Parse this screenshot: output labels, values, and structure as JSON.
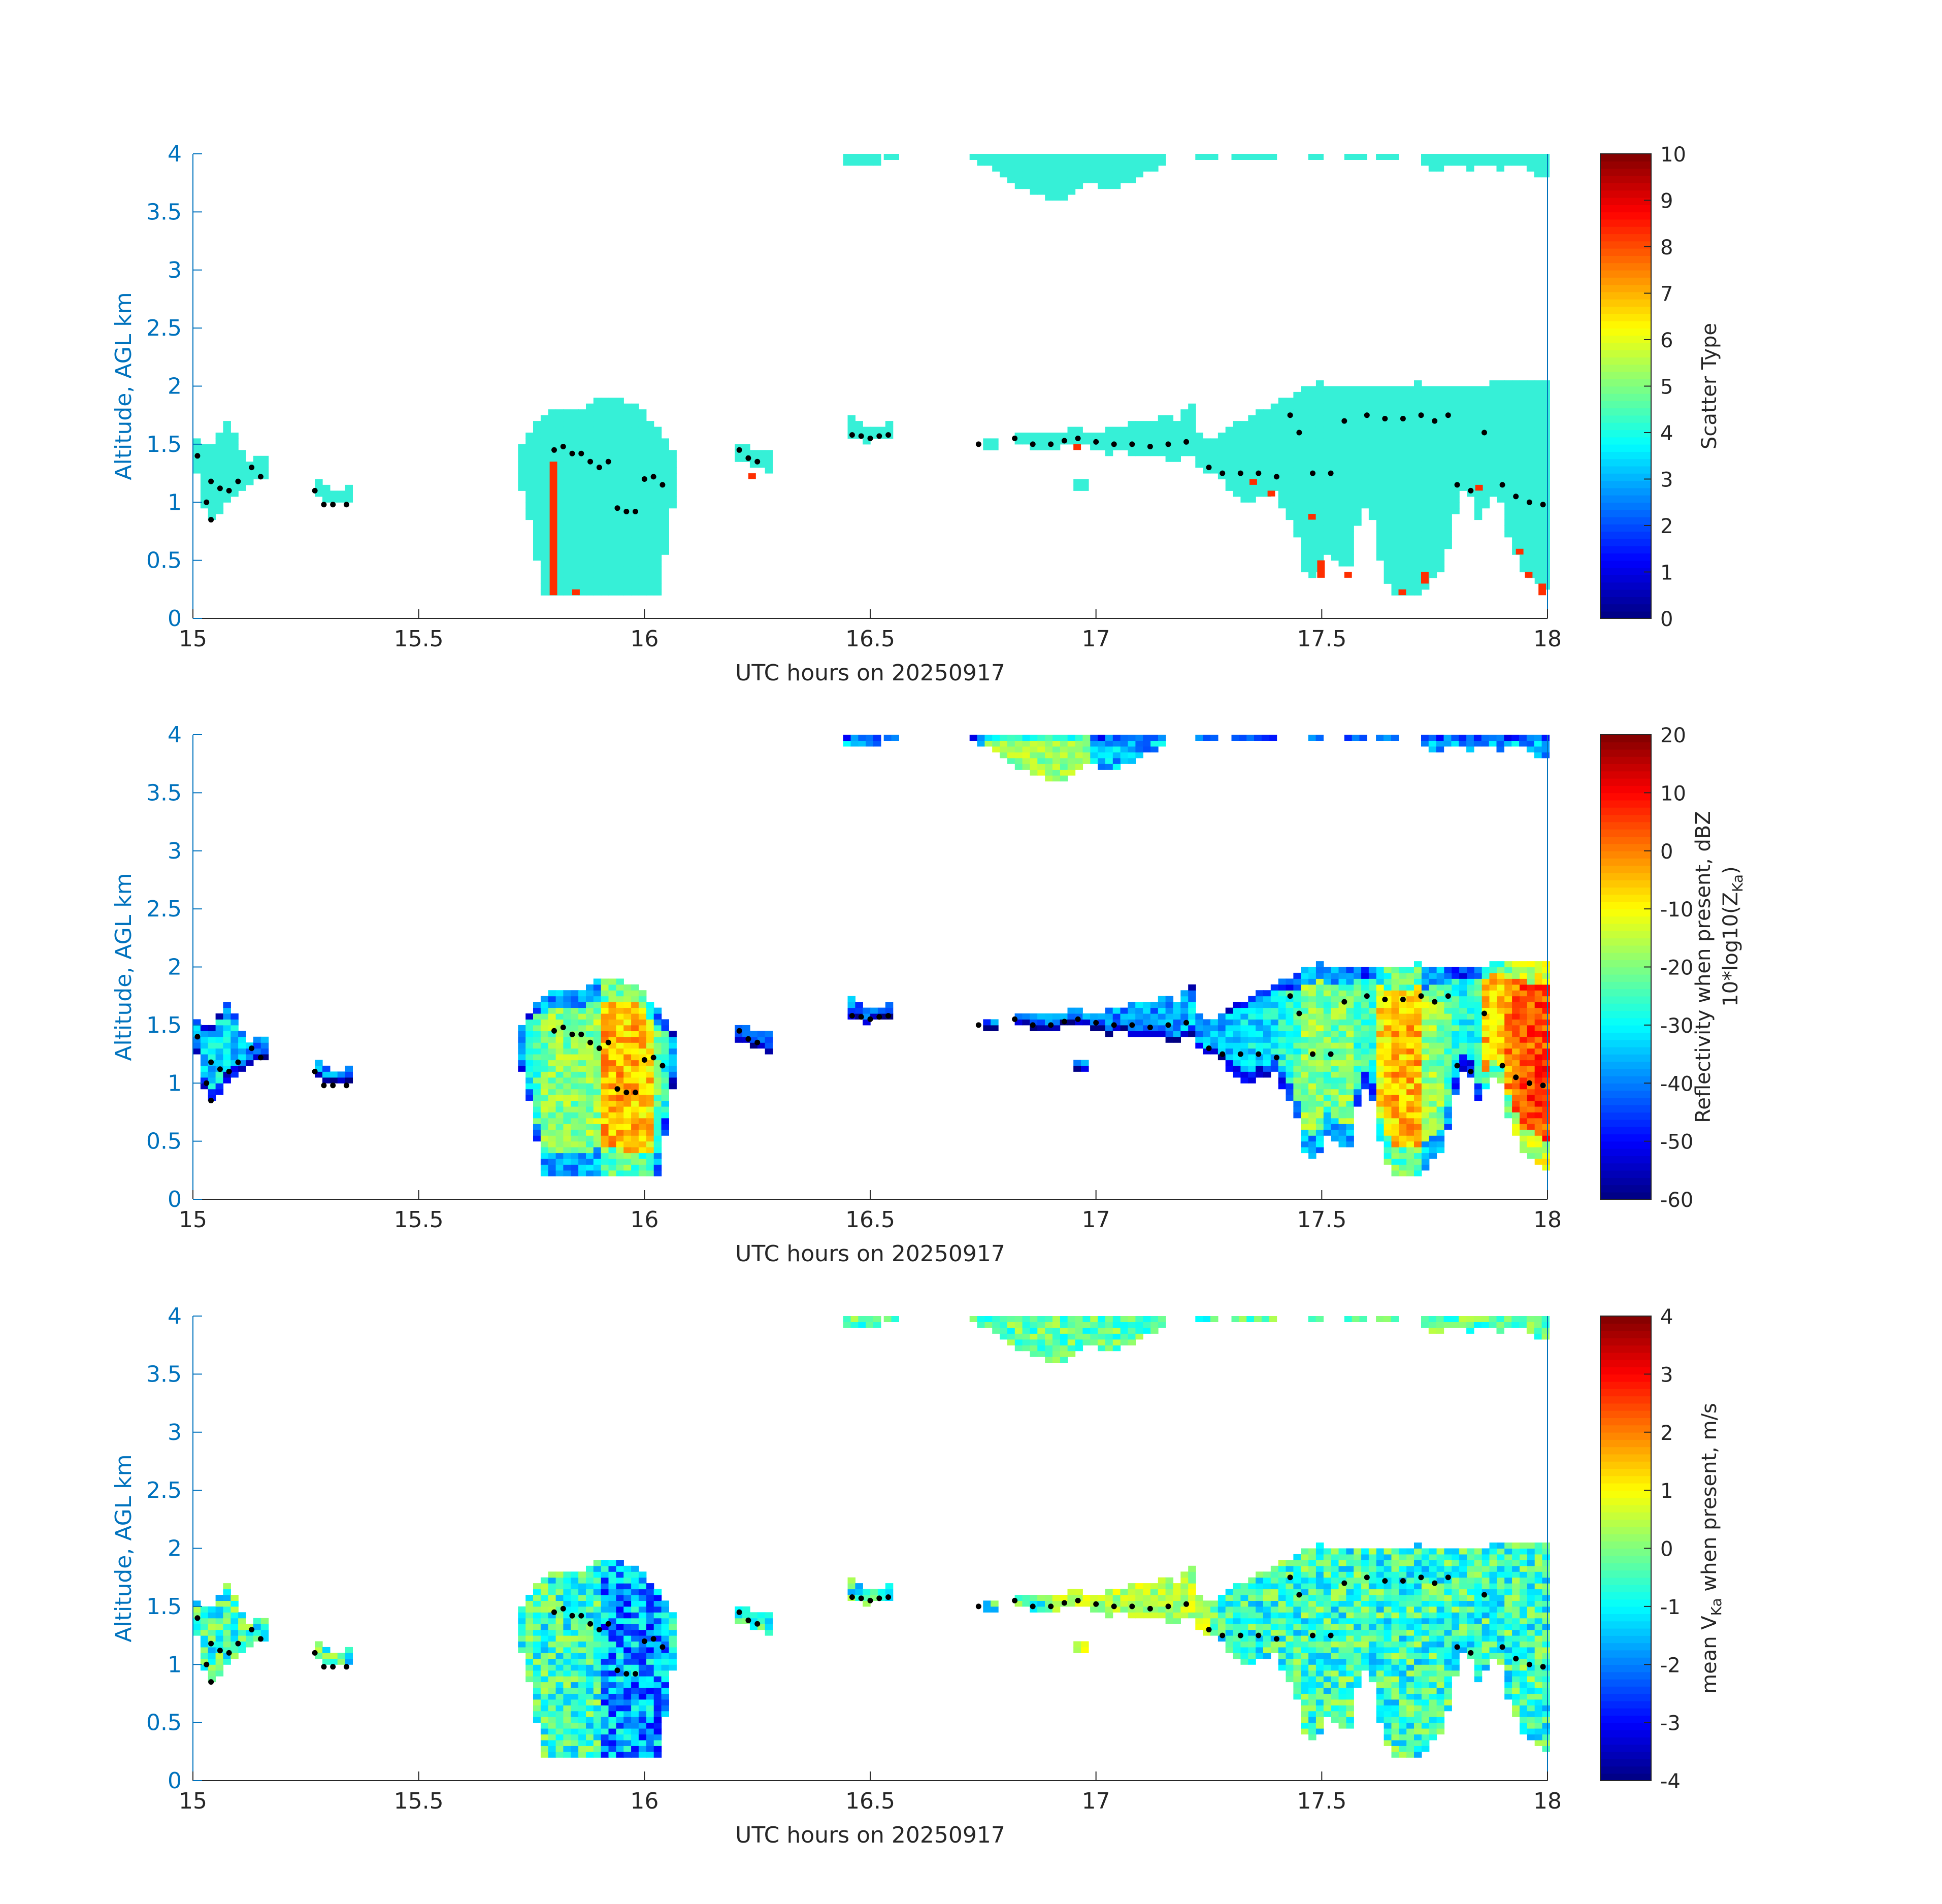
{
  "chart_data": [
    {
      "type": "heatmap",
      "panel": "scatter-type",
      "xlabel": "UTC hours on 20250917",
      "ylabel": "Altitude, AGL km",
      "xlim": [
        15,
        18
      ],
      "ylim": [
        0,
        4
      ],
      "xticks": [
        "15",
        "15.5",
        "16",
        "16.5",
        "17",
        "17.5",
        "18"
      ],
      "yticks": [
        "0",
        "0.5",
        "1",
        "1.5",
        "2",
        "2.5",
        "3",
        "3.5",
        "4"
      ],
      "colorbar": {
        "label": "Scatter Type",
        "label2": "",
        "clim": [
          0,
          10
        ],
        "ticks": [
          "0",
          "1",
          "2",
          "3",
          "4",
          "5",
          "6",
          "7",
          "8",
          "9",
          "10"
        ],
        "colormap": "jet"
      },
      "dominant_value": 3.8,
      "secondary_value": 8.3
    },
    {
      "type": "heatmap",
      "panel": "reflectivity",
      "xlabel": "UTC hours on 20250917",
      "ylabel": "Altitude, AGL km",
      "xlim": [
        15,
        18
      ],
      "ylim": [
        0,
        4
      ],
      "xticks": [
        "15",
        "15.5",
        "16",
        "16.5",
        "17",
        "17.5",
        "18"
      ],
      "yticks": [
        "0",
        "0.5",
        "1",
        "1.5",
        "2",
        "2.5",
        "3",
        "3.5",
        "4"
      ],
      "colorbar": {
        "label": "Reflectivity when present, dBZ",
        "label2": "10*log10(Z",
        "label2_sub": "Ka",
        "label2_end": ")",
        "clim": [
          -60,
          20
        ],
        "ticks": [
          "-60",
          "-50",
          "-40",
          "-30",
          "-20",
          "-10",
          "0",
          "10",
          "20"
        ],
        "colormap": "jet"
      }
    },
    {
      "type": "heatmap",
      "panel": "mean-velocity",
      "xlabel": "UTC hours on 20250917",
      "ylabel": "Altitude, AGL km",
      "xlim": [
        15,
        18
      ],
      "ylim": [
        0,
        4
      ],
      "xticks": [
        "15",
        "15.5",
        "16",
        "16.5",
        "17",
        "17.5",
        "18"
      ],
      "yticks": [
        "0",
        "0.5",
        "1",
        "1.5",
        "2",
        "2.5",
        "3",
        "3.5",
        "4"
      ],
      "colorbar": {
        "label": "mean V",
        "label_sub": "Ka",
        "label_end": " when present, m/s",
        "clim": [
          -4,
          4
        ],
        "ticks": [
          "-4",
          "-3",
          "-2",
          "-1",
          "0",
          "1",
          "2",
          "3",
          "4"
        ],
        "colormap": "jet"
      }
    }
  ],
  "cloud_regions": [
    {
      "x0": 15.0,
      "x1": 15.16,
      "ybot": [
        1.25,
        0.85,
        0.9,
        1.0,
        1.1,
        1.15,
        1.2,
        1.2
      ],
      "ytop": [
        1.55,
        1.45,
        1.6,
        1.72,
        1.5,
        1.35,
        1.38,
        1.38
      ]
    },
    {
      "x0": 15.27,
      "x1": 15.35,
      "ybot": [
        1.05,
        0.98,
        0.98,
        0.98
      ],
      "ytop": [
        1.2,
        1.12,
        1.12,
        1.15
      ]
    },
    {
      "x0": 15.72,
      "x1": 16.07,
      "ybot": [
        1.1,
        0.8,
        0.2,
        0.2,
        0.2,
        0.2,
        0.2,
        0.2,
        0.2,
        0.2,
        0.2,
        0.2,
        0.2,
        0.2,
        0.2,
        0.9,
        1.0
      ],
      "ytop": [
        1.5,
        1.6,
        1.75,
        1.8,
        1.78,
        1.8,
        1.82,
        1.85,
        1.9,
        1.9,
        1.88,
        1.85,
        1.8,
        1.7,
        1.6,
        1.5,
        1.4
      ]
    },
    {
      "x0": 16.2,
      "x1": 16.27,
      "ybot": [
        1.35,
        1.3,
        1.25
      ],
      "ytop": [
        1.52,
        1.45,
        1.45
      ]
    },
    {
      "x0": 16.45,
      "x1": 16.55,
      "ybot": [
        1.55,
        1.52,
        1.55,
        1.55
      ],
      "ytop": [
        1.75,
        1.65,
        1.65,
        1.75
      ]
    },
    {
      "x0": 16.75,
      "x1": 16.77,
      "ybot": [
        1.45
      ],
      "ytop": [
        1.55
      ]
    },
    {
      "x0": 16.82,
      "x1": 17.22,
      "ybot": [
        1.5,
        1.48,
        1.45,
        1.45,
        1.48,
        1.5,
        1.48,
        1.45,
        1.42,
        1.45,
        1.42,
        1.4,
        1.42,
        1.38,
        1.35,
        1.4,
        1.38
      ],
      "ytop": [
        1.6,
        1.58,
        1.6,
        1.62,
        1.6,
        1.65,
        1.62,
        1.6,
        1.65,
        1.62,
        1.68,
        1.7,
        1.72,
        1.75,
        1.7,
        1.85,
        1.8
      ]
    },
    {
      "x0": 17.22,
      "x1": 18.0,
      "ybot": [
        1.3,
        1.25,
        1.2,
        1.1,
        1.0,
        1.0,
        1.05,
        1.1,
        0.9,
        0.8,
        0.35,
        0.35,
        0.55,
        0.45,
        0.4,
        0.9,
        0.95,
        0.5,
        0.2,
        0.2,
        0.2,
        0.25,
        0.35,
        0.45,
        0.9,
        1.2,
        0.85,
        0.95,
        1.1,
        0.7,
        0.45,
        0.35,
        0.3,
        0.2
      ],
      "ytop": [
        1.6,
        1.55,
        1.6,
        1.65,
        1.7,
        1.75,
        1.8,
        1.85,
        1.9,
        1.95,
        2.0,
        2.03,
        2.02,
        2.0,
        1.98,
        2.0,
        2.02,
        1.98,
        2.0,
        2.0,
        2.03,
        2.02,
        1.98,
        2.0,
        1.98,
        2.0,
        2.0,
        2.02,
        2.03,
        2.03,
        2.03,
        2.03,
        2.03,
        2.03
      ]
    },
    {
      "x0": 16.95,
      "x1": 16.97,
      "ybot": [
        1.1
      ],
      "ytop": [
        1.18
      ]
    }
  ],
  "upper_cloud_regions": [
    {
      "x0": 16.44,
      "x1": 16.51,
      "bottom": [
        3.9,
        3.88,
        3.9
      ]
    },
    {
      "x0": 16.53,
      "x1": 16.55,
      "bottom": [
        3.95
      ]
    },
    {
      "x0": 16.72,
      "x1": 17.15,
      "bottom": [
        3.95,
        3.9,
        3.85,
        3.78,
        3.72,
        3.68,
        3.65,
        3.58,
        3.62,
        3.7,
        3.75,
        3.72,
        3.68,
        3.72,
        3.78,
        3.82,
        3.88,
        3.92
      ]
    },
    {
      "x0": 17.22,
      "x1": 17.27,
      "bottom": [
        3.95,
        3.95
      ]
    },
    {
      "x0": 17.3,
      "x1": 17.4,
      "bottom": [
        3.95,
        3.95,
        3.96
      ]
    },
    {
      "x0": 17.47,
      "x1": 17.5,
      "bottom": [
        3.96
      ]
    },
    {
      "x0": 17.55,
      "x1": 17.6,
      "bottom": [
        3.96,
        3.96
      ]
    },
    {
      "x0": 17.62,
      "x1": 17.66,
      "bottom": [
        3.96
      ]
    },
    {
      "x0": 17.72,
      "x1": 18.0,
      "bottom": [
        3.9,
        3.85,
        3.88,
        3.9,
        3.86,
        3.88,
        3.9,
        3.85,
        3.88,
        3.9,
        3.85,
        3.8,
        3.75
      ]
    }
  ],
  "cloud_base_markers": [
    [
      15.01,
      1.4
    ],
    [
      15.03,
      1.0
    ],
    [
      15.04,
      0.85
    ],
    [
      15.04,
      1.18
    ],
    [
      15.06,
      1.12
    ],
    [
      15.08,
      1.1
    ],
    [
      15.1,
      1.18
    ],
    [
      15.13,
      1.3
    ],
    [
      15.15,
      1.22
    ],
    [
      15.27,
      1.1
    ],
    [
      15.29,
      0.98
    ],
    [
      15.31,
      0.98
    ],
    [
      15.34,
      0.98
    ],
    [
      15.8,
      1.45
    ],
    [
      15.82,
      1.48
    ],
    [
      15.84,
      1.42
    ],
    [
      15.86,
      1.42
    ],
    [
      15.88,
      1.35
    ],
    [
      15.9,
      1.3
    ],
    [
      15.92,
      1.35
    ],
    [
      15.94,
      0.95
    ],
    [
      15.96,
      0.92
    ],
    [
      15.98,
      0.92
    ],
    [
      16.0,
      1.2
    ],
    [
      16.02,
      1.22
    ],
    [
      16.04,
      1.15
    ],
    [
      16.21,
      1.45
    ],
    [
      16.23,
      1.38
    ],
    [
      16.25,
      1.35
    ],
    [
      16.46,
      1.58
    ],
    [
      16.48,
      1.57
    ],
    [
      16.5,
      1.55
    ],
    [
      16.52,
      1.57
    ],
    [
      16.54,
      1.58
    ],
    [
      16.74,
      1.5
    ],
    [
      16.82,
      1.55
    ],
    [
      16.86,
      1.5
    ],
    [
      16.9,
      1.5
    ],
    [
      16.93,
      1.53
    ],
    [
      16.96,
      1.55
    ],
    [
      17.0,
      1.52
    ],
    [
      17.04,
      1.5
    ],
    [
      17.08,
      1.5
    ],
    [
      17.12,
      1.48
    ],
    [
      17.16,
      1.5
    ],
    [
      17.2,
      1.52
    ],
    [
      17.25,
      1.3
    ],
    [
      17.28,
      1.25
    ],
    [
      17.32,
      1.25
    ],
    [
      17.36,
      1.25
    ],
    [
      17.4,
      1.22
    ],
    [
      17.43,
      1.75
    ],
    [
      17.45,
      1.6
    ],
    [
      17.48,
      1.25
    ],
    [
      17.52,
      1.25
    ],
    [
      17.55,
      1.7
    ],
    [
      17.6,
      1.75
    ],
    [
      17.64,
      1.72
    ],
    [
      17.68,
      1.72
    ],
    [
      17.72,
      1.75
    ],
    [
      17.75,
      1.7
    ],
    [
      17.78,
      1.75
    ],
    [
      17.8,
      1.15
    ],
    [
      17.83,
      1.1
    ],
    [
      17.86,
      1.6
    ],
    [
      17.9,
      1.15
    ],
    [
      17.93,
      1.05
    ],
    [
      17.96,
      1.0
    ],
    [
      17.99,
      0.98
    ]
  ],
  "velocity_cloud_fill": "#36e8c0"
}
